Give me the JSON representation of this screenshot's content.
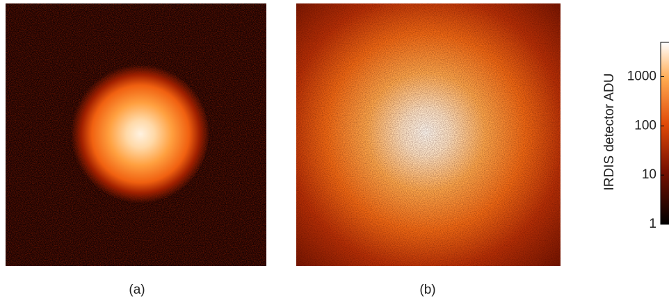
{
  "chart_data": {
    "type": "image",
    "panels": [
      {
        "label": "(a)"
      },
      {
        "label": "(b)"
      }
    ],
    "colorbar": {
      "label": "IRDIS detector ADU",
      "log": true,
      "lim": [
        1,
        5000
      ],
      "ticks": [
        1,
        10,
        100,
        1000
      ]
    }
  }
}
